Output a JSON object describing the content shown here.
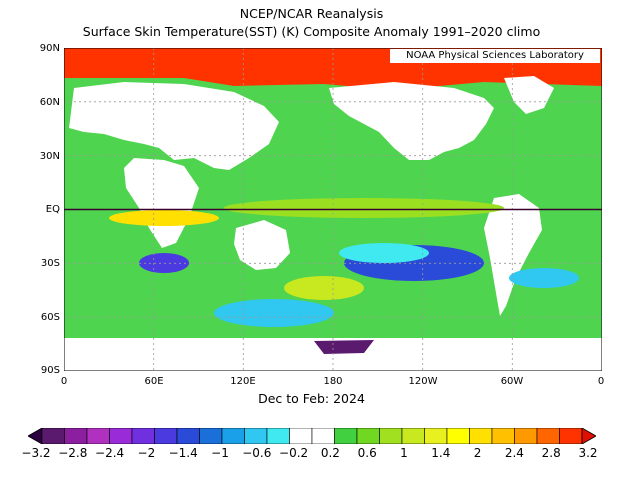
{
  "title_line1": "NCEP/NCAR Reanalysis",
  "title_line2": "Surface Skin Temperature(SST) (K) Composite Anomaly 1991–2020 climo",
  "credit": "NOAA Physical Sciences Laboratory",
  "period_label": "Dec to Feb: 2024",
  "lat_labels": [
    "90N",
    "60N",
    "30N",
    "EQ",
    "30S",
    "60S",
    "90S"
  ],
  "lon_labels": [
    "0",
    "60E",
    "120E",
    "180",
    "120W",
    "60W",
    "0"
  ],
  "colorbar": {
    "labels": [
      "−3.2",
      "−2.8",
      "−2.4",
      "−2",
      "−1.4",
      "−1",
      "−0.6",
      "−0.2",
      "0.2",
      "0.6",
      "1",
      "1.4",
      "2",
      "2.4",
      "2.8",
      "3.2"
    ],
    "colors": [
      "#2d0040",
      "#5a1a6e",
      "#8c1fa0",
      "#b030c0",
      "#9a2bd8",
      "#7030e0",
      "#4a3ae0",
      "#2a4ad8",
      "#1a70d8",
      "#1aa0e8",
      "#30c8f0",
      "#40e8f0",
      "#ffffff",
      "#ffffff",
      "#40d040",
      "#70d820",
      "#a0e020",
      "#c8e820",
      "#e8f020",
      "#ffff00",
      "#ffe000",
      "#ffc000",
      "#ff9900",
      "#ff6600",
      "#ff3300",
      "#e01000"
    ]
  }
}
